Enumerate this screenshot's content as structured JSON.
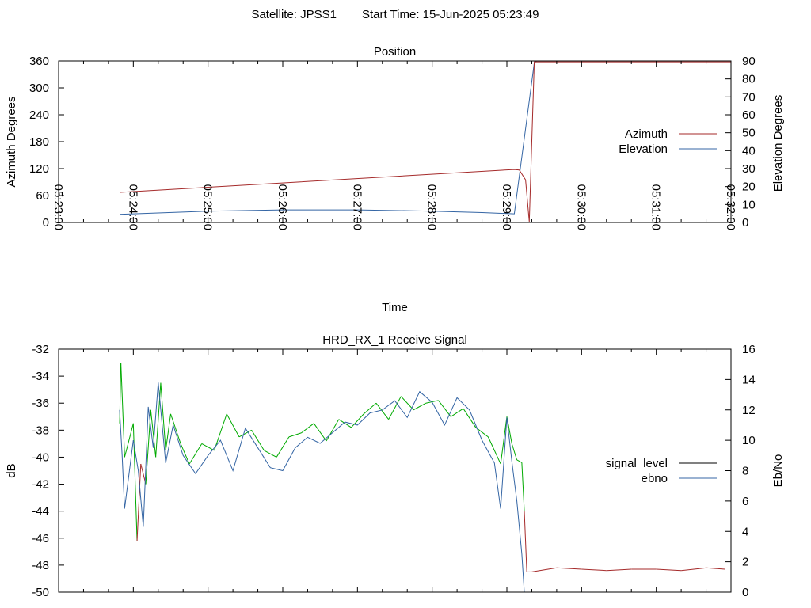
{
  "header": {
    "satellite_label": "Satellite: JPSS1",
    "start_time_label": "Start Time: 15-Jun-2025 05:23:49"
  },
  "colors": {
    "azimuth": "#a52a2a",
    "elevation": "#3465a4",
    "signal_level": "#000000",
    "ebno": "#3465a4",
    "signal_trace_low": "#a52a2a",
    "signal_trace_high": "#00aa00"
  },
  "chart_data": [
    {
      "type": "line",
      "title": "Position",
      "xlabel": "Time",
      "ylabel": "Azimuth Degrees",
      "y2label": "Elevation Degrees",
      "xlim": [
        "05:23:00",
        "05:32:00"
      ],
      "xticks": [
        "05:23:00",
        "05:24:00",
        "05:25:00",
        "05:26:00",
        "05:27:00",
        "05:28:00",
        "05:29:00",
        "05:30:00",
        "05:31:00",
        "05:32:00"
      ],
      "ylim": [
        0,
        360
      ],
      "yticks": [
        0,
        60,
        120,
        180,
        240,
        300,
        360
      ],
      "y2lim": [
        0,
        90
      ],
      "y2ticks": [
        0,
        10,
        20,
        30,
        40,
        50,
        60,
        70,
        80,
        90
      ],
      "legend_position": "right",
      "series": [
        {
          "name": "Azimuth",
          "axis": "y",
          "x": [
            "05:23:49",
            "05:29:06",
            "05:29:10",
            "05:29:15",
            "05:29:18",
            "05:29:22",
            "05:32:00"
          ],
          "values": [
            67,
            118,
            117,
            95,
            1,
            358,
            358
          ]
        },
        {
          "name": "Elevation",
          "axis": "y2",
          "x": [
            "05:23:49",
            "05:25:00",
            "05:26:00",
            "05:27:00",
            "05:28:00",
            "05:28:40",
            "05:29:06",
            "05:29:22",
            "05:29:24",
            "05:32:00"
          ],
          "values": [
            4.5,
            6.3,
            7.0,
            7.0,
            6.3,
            5.5,
            4.8,
            89,
            90,
            90
          ]
        }
      ]
    },
    {
      "type": "line",
      "title": "HRD_RX_1 Receive Signal",
      "ylabel": "dB",
      "y2label": "Eb/No",
      "xlim": [
        "05:23:00",
        "05:32:00"
      ],
      "ylim": [
        -50,
        -32
      ],
      "yticks": [
        -50,
        -48,
        -46,
        -44,
        -42,
        -40,
        -38,
        -36,
        -34,
        -32
      ],
      "y2lim": [
        0,
        16
      ],
      "y2ticks": [
        0,
        2,
        4,
        6,
        8,
        10,
        12,
        14,
        16
      ],
      "legend_position": "right",
      "series": [
        {
          "name": "signal_level",
          "axis": "y",
          "x": [
            "05:23:49",
            "05:23:50",
            "05:23:53",
            "05:24:00",
            "05:24:03",
            "05:24:06",
            "05:24:10",
            "05:24:14",
            "05:24:18",
            "05:24:22",
            "05:24:26",
            "05:24:30",
            "05:24:38",
            "05:24:45",
            "05:24:55",
            "05:25:05",
            "05:25:15",
            "05:25:25",
            "05:25:35",
            "05:25:45",
            "05:25:55",
            "05:26:05",
            "05:26:15",
            "05:26:25",
            "05:26:35",
            "05:26:45",
            "05:26:55",
            "05:27:05",
            "05:27:15",
            "05:27:25",
            "05:27:35",
            "05:27:45",
            "05:27:55",
            "05:28:05",
            "05:28:15",
            "05:28:25",
            "05:28:35",
            "05:28:45",
            "05:28:55",
            "05:29:00",
            "05:29:04",
            "05:29:08",
            "05:29:12",
            "05:29:14",
            "05:29:16",
            "05:29:20",
            "05:29:40",
            "05:30:00",
            "05:30:20",
            "05:30:40",
            "05:31:00",
            "05:31:20",
            "05:31:40",
            "05:31:55"
          ],
          "values": [
            -37.5,
            -33.0,
            -40.0,
            -37.5,
            -46.2,
            -40.5,
            -42.0,
            -36.5,
            -40.0,
            -34.5,
            -39.5,
            -36.8,
            -39.0,
            -40.5,
            -39.0,
            -39.5,
            -36.8,
            -38.5,
            -38.0,
            -39.5,
            -40.0,
            -38.5,
            -38.2,
            -37.5,
            -38.8,
            -37.2,
            -37.8,
            -36.8,
            -36.0,
            -37.2,
            -35.5,
            -36.5,
            -36.0,
            -35.8,
            -37.0,
            -36.4,
            -37.8,
            -38.5,
            -40.5,
            -37.0,
            -39.0,
            -40.2,
            -40.4,
            -44.0,
            -48.5,
            -48.5,
            -48.2,
            -48.3,
            -48.4,
            -48.3,
            -48.3,
            -48.4,
            -48.2,
            -48.3
          ]
        },
        {
          "name": "ebno",
          "axis": "y2",
          "x": [
            "05:23:49",
            "05:23:51",
            "05:23:53",
            "05:24:00",
            "05:24:04",
            "05:24:08",
            "05:24:12",
            "05:24:16",
            "05:24:20",
            "05:24:26",
            "05:24:32",
            "05:24:40",
            "05:24:50",
            "05:25:00",
            "05:25:10",
            "05:25:20",
            "05:25:30",
            "05:25:40",
            "05:25:50",
            "05:26:00",
            "05:26:10",
            "05:26:20",
            "05:26:30",
            "05:26:40",
            "05:26:50",
            "05:27:00",
            "05:27:10",
            "05:27:20",
            "05:27:30",
            "05:27:40",
            "05:27:50",
            "05:28:00",
            "05:28:10",
            "05:28:20",
            "05:28:30",
            "05:28:40",
            "05:28:50",
            "05:28:55",
            "05:29:00",
            "05:29:04",
            "05:29:08",
            "05:29:12",
            "05:29:14"
          ],
          "values": [
            12.0,
            9.0,
            5.5,
            10.0,
            8.0,
            4.3,
            12.2,
            9.5,
            13.8,
            8.5,
            11.0,
            9.0,
            7.8,
            9.0,
            10.0,
            8.0,
            10.8,
            9.5,
            8.2,
            8.0,
            9.5,
            10.2,
            9.8,
            10.5,
            11.2,
            11.0,
            11.8,
            12.0,
            12.6,
            11.5,
            13.2,
            12.5,
            11.0,
            12.8,
            12.0,
            10.0,
            8.5,
            5.5,
            11.5,
            8.6,
            6.0,
            2.5,
            0.0
          ]
        }
      ]
    }
  ]
}
